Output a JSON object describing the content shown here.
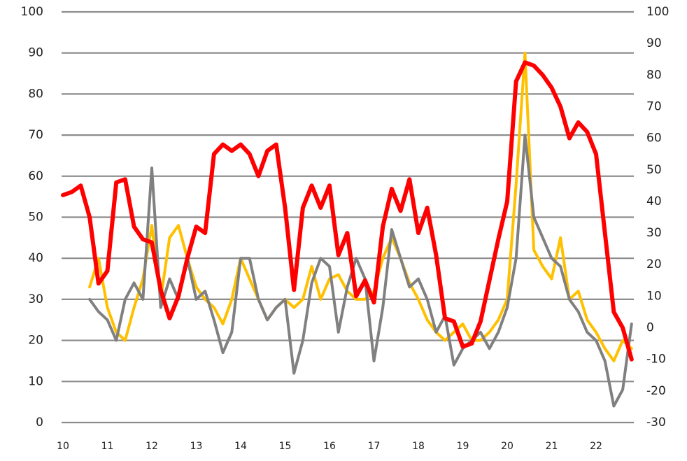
{
  "chart_data": {
    "type": "line",
    "x": [
      10.0,
      10.2,
      10.4,
      10.6,
      10.8,
      11.0,
      11.2,
      11.4,
      11.6,
      11.8,
      12.0,
      12.2,
      12.4,
      12.6,
      12.8,
      13.0,
      13.2,
      13.4,
      13.6,
      13.8,
      14.0,
      14.2,
      14.4,
      14.6,
      14.8,
      15.0,
      15.2,
      15.4,
      15.6,
      15.8,
      16.0,
      16.2,
      16.4,
      16.6,
      16.8,
      17.0,
      17.2,
      17.4,
      17.6,
      17.8,
      18.0,
      18.2,
      18.4,
      18.6,
      18.8,
      19.0,
      19.2,
      19.4,
      19.6,
      19.8,
      20.0,
      20.2,
      20.4,
      20.6,
      20.8,
      21.0,
      21.2,
      21.4,
      21.6,
      21.8,
      22.0,
      22.2,
      22.4,
      22.6,
      22.8
    ],
    "series": [
      {
        "color": "#ffc000",
        "values": [
          null,
          null,
          null,
          33,
          40,
          28,
          22,
          20,
          28,
          35,
          48,
          30,
          45,
          48,
          40,
          33,
          30,
          28,
          24,
          30,
          40,
          35,
          30,
          25,
          28,
          30,
          28,
          30,
          38,
          30,
          35,
          36,
          32,
          30,
          30,
          32,
          40,
          45,
          40,
          34,
          30,
          25,
          22,
          20,
          22,
          24,
          20,
          20,
          22,
          25,
          30,
          58,
          90,
          42,
          38,
          35,
          45,
          30,
          32,
          25,
          22,
          18,
          15,
          20,
          18
        ]
      },
      {
        "color": "#808080",
        "values": [
          null,
          null,
          null,
          30,
          27,
          25,
          20,
          30,
          34,
          30,
          62,
          28,
          35,
          30,
          40,
          30,
          32,
          25,
          17,
          22,
          40,
          40,
          30,
          25,
          28,
          30,
          12,
          20,
          34,
          40,
          38,
          22,
          33,
          40,
          35,
          15,
          28,
          47,
          40,
          33,
          35,
          30,
          22,
          26,
          14,
          18,
          20,
          22,
          18,
          22,
          28,
          40,
          70,
          50,
          45,
          40,
          38,
          30,
          27,
          22,
          20,
          15,
          4,
          8,
          24
        ]
      },
      {
        "color": "#ff0000",
        "axis": "y2",
        "values": [
          42,
          43,
          45,
          35,
          14,
          18,
          46,
          47,
          32,
          28,
          27,
          12,
          3,
          10,
          22,
          32,
          30,
          55,
          58,
          56,
          58,
          55,
          48,
          56,
          58,
          38,
          12,
          38,
          45,
          38,
          45,
          23,
          30,
          10,
          15,
          8,
          32,
          44,
          37,
          47,
          30,
          38,
          23,
          3,
          2,
          -6,
          -5,
          2,
          15,
          28,
          40,
          78,
          84,
          83,
          80,
          76,
          70,
          60,
          65,
          62,
          55,
          30,
          5,
          0,
          -10
        ]
      }
    ],
    "xlim": [
      10,
      22.85
    ],
    "xticks": [
      10,
      11,
      12,
      13,
      14,
      15,
      16,
      17,
      18,
      19,
      20,
      21,
      22
    ],
    "ylim": [
      0,
      100
    ],
    "yticks": [
      0,
      10,
      20,
      30,
      40,
      50,
      60,
      70,
      80,
      90,
      100
    ],
    "y2lim": [
      -30,
      100
    ],
    "y2ticks": [
      -30,
      -20,
      -10,
      0,
      10,
      20,
      30,
      40,
      50,
      60,
      70,
      80,
      90,
      100
    ],
    "grid": true
  }
}
